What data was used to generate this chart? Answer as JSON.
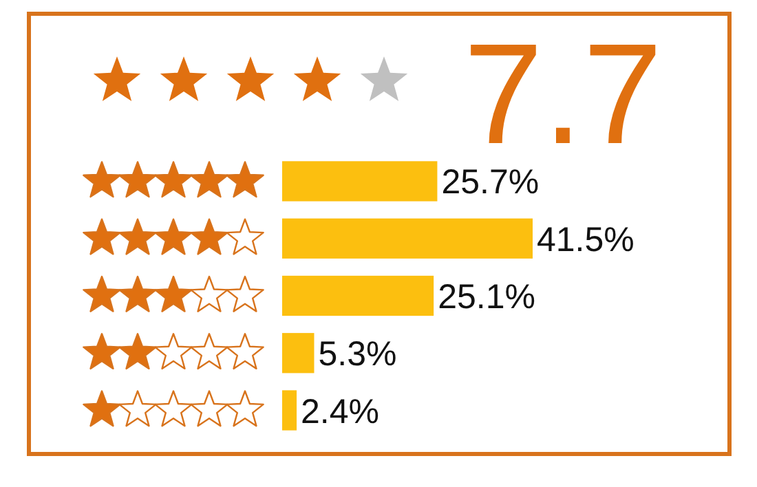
{
  "chart_data": {
    "type": "bar",
    "orientation": "horizontal",
    "title": "7.7",
    "categories": [
      null,
      null,
      null,
      null,
      null
    ],
    "values": [
      25.7,
      41.5,
      25.1,
      5.3,
      2.4
    ],
    "value_labels": [
      "25.7%",
      "41.5%",
      "25.1%",
      "5.3%",
      "2.4%"
    ],
    "color": "#fcbf0f"
  }
}
